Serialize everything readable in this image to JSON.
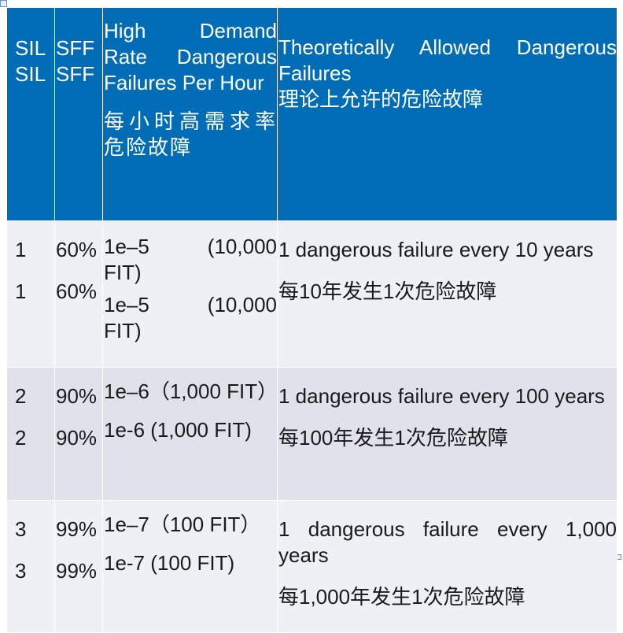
{
  "header": {
    "sil": [
      "SIL",
      "SIL"
    ],
    "sff": [
      "SFF",
      "SFF"
    ],
    "rate_en": "High Demand Rate Dangerous Failures Per Hour",
    "rate_cn": "每小时高需求率危险故障",
    "allowed_en": "Theoretically Allowed Dangerous Failures",
    "allowed_cn": "理论上允许的危险故障"
  },
  "rows": [
    {
      "sil": [
        "1",
        "1"
      ],
      "sff": [
        "60%",
        "60%"
      ],
      "rate": [
        "1e–5　(10,000 FIT)",
        "1e–5　(10,000 FIT)"
      ],
      "allowed_en": "1 dangerous failure every 10 years",
      "allowed_cn": "每10年发生1次危险故障"
    },
    {
      "sil": [
        "2",
        "2"
      ],
      "sff": [
        "90%",
        "90%"
      ],
      "rate": [
        "1e–6（1,000 FIT）",
        "1e-6 (1,000 FIT)"
      ],
      "allowed_en": "1 dangerous failure every 100 years",
      "allowed_cn": "每100年发生1次危险故障"
    },
    {
      "sil": [
        "3",
        "3"
      ],
      "sff": [
        "99%",
        "99%"
      ],
      "rate": [
        "1e–7（100 FIT）",
        "1e-7 (100 FIT)"
      ],
      "allowed_en": "1 dangerous failure every 1,000 years",
      "allowed_cn": "每1,000年发生1次危险故障"
    }
  ],
  "colors": {
    "header_bg": "#006db6",
    "row_light": "#eff0f5",
    "row_dark": "#e0e1ea"
  }
}
